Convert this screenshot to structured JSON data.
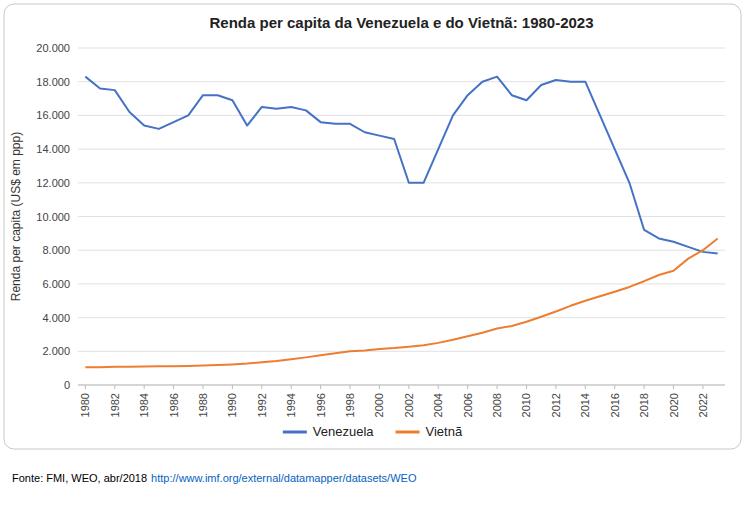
{
  "chart_data": {
    "type": "line",
    "title": "Renda per capita da Venezuela e do Vietnã: 1980-2023",
    "y_label": "Renda per capita (US$ em ppp)",
    "annotations": [
      "Fonte: FMI, WEO, abr/2018 ",
      "http://www.imf.org/external/datamapper/datasets/WEO"
    ],
    "x": [
      1980,
      1981,
      1982,
      1983,
      1984,
      1985,
      1986,
      1987,
      1988,
      1989,
      1990,
      1991,
      1992,
      1993,
      1994,
      1995,
      1996,
      1997,
      1998,
      1999,
      2000,
      2001,
      2002,
      2003,
      2004,
      2005,
      2006,
      2007,
      2008,
      2009,
      2010,
      2011,
      2012,
      2013,
      2014,
      2015,
      2016,
      2017,
      2018,
      2019,
      2020,
      2021,
      2022,
      2023
    ],
    "series": [
      {
        "name": "Venezuela",
        "color": "#4472C4",
        "values": [
          18300,
          17600,
          17500,
          16200,
          15400,
          15200,
          15600,
          16000,
          17200,
          17200,
          16900,
          15400,
          16500,
          16400,
          16500,
          16300,
          15600,
          15500,
          15500,
          15000,
          14800,
          14600,
          12000,
          12000,
          14000,
          16000,
          17200,
          18000,
          18300,
          17200,
          16900,
          17800,
          18100,
          18000,
          18000,
          16000,
          14000,
          12000,
          9200,
          8700,
          8500,
          8200,
          7900,
          7800
        ]
      },
      {
        "name": "Vietnã",
        "color": "#ED7D31",
        "values": [
          1050,
          1060,
          1080,
          1080,
          1100,
          1110,
          1120,
          1130,
          1150,
          1180,
          1220,
          1270,
          1350,
          1430,
          1530,
          1640,
          1760,
          1890,
          2000,
          2050,
          2130,
          2190,
          2270,
          2360,
          2500,
          2680,
          2890,
          3100,
          3350,
          3500,
          3750,
          4050,
          4360,
          4700,
          5000,
          5270,
          5530,
          5820,
          6160,
          6530,
          6780,
          7500,
          8000,
          8700
        ]
      }
    ],
    "xlim": [
      1979.5,
      2023.5
    ],
    "xticks": [
      1980,
      1982,
      1984,
      1986,
      1988,
      1990,
      1992,
      1994,
      1996,
      1998,
      2000,
      2002,
      2004,
      2006,
      2008,
      2010,
      2012,
      2014,
      2016,
      2018,
      2020,
      2022
    ],
    "ylim": [
      0,
      20000
    ],
    "yticks": [
      0,
      {
        "value": 2000,
        "label": "2.000"
      },
      {
        "value": 4000,
        "label": "4.000"
      },
      {
        "value": 6000,
        "label": "6.000"
      },
      {
        "value": 8000,
        "label": "8.000"
      },
      {
        "value": 10000,
        "label": "10.000"
      },
      {
        "value": 12000,
        "label": "12.000"
      },
      {
        "value": 14000,
        "label": "14.000"
      },
      {
        "value": 16000,
        "label": "16.000"
      },
      {
        "value": 18000,
        "label": "18.000"
      },
      {
        "value": 20000,
        "label": "20.000"
      }
    ],
    "grid": true,
    "legend": "bottom"
  }
}
